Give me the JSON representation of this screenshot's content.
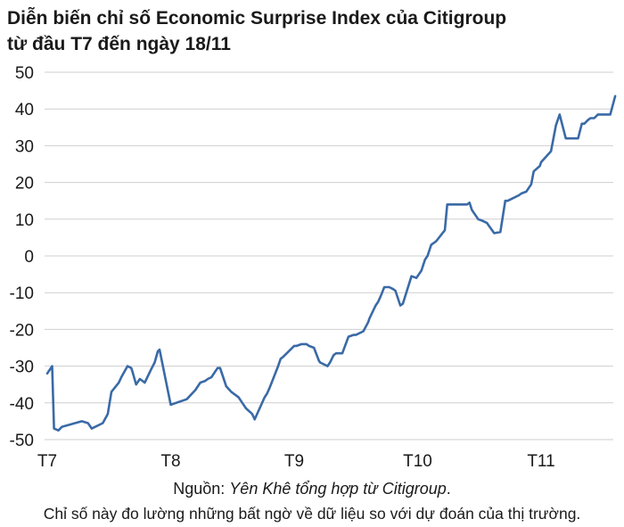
{
  "chart_data": {
    "type": "line",
    "title_line1": "Diễn biến chỉ số Economic Surprise Index của Citigroup",
    "title_line2": "từ đầu T7 đến ngày 18/11",
    "ylim": [
      -50,
      50
    ],
    "y_ticks": [
      "50",
      "40",
      "30",
      "20",
      "10",
      "0",
      "-10",
      "-20",
      "-30",
      "-40",
      "-50"
    ],
    "y_tick_values": [
      50,
      40,
      30,
      20,
      10,
      0,
      -10,
      -20,
      -30,
      -40,
      -50
    ],
    "x_ticks": [
      "T7",
      "T8",
      "T9",
      "T10",
      "T11"
    ],
    "x_tick_positions": [
      0,
      1,
      2,
      3,
      4
    ],
    "xlim": [
      0,
      4.6
    ],
    "line_color": "#3a6aa6",
    "series": [
      {
        "name": "Citigroup Economic Surprise Index",
        "x": [
          0.0,
          0.04,
          0.055,
          0.09,
          0.12,
          0.28,
          0.33,
          0.36,
          0.45,
          0.49,
          0.52,
          0.58,
          0.6,
          0.65,
          0.68,
          0.69,
          0.72,
          0.75,
          0.79,
          0.84,
          0.87,
          0.895,
          0.91,
          1.0,
          1.13,
          1.2,
          1.24,
          1.28,
          1.3,
          1.33,
          1.38,
          1.4,
          1.45,
          1.49,
          1.55,
          1.58,
          1.61,
          1.66,
          1.68,
          1.76,
          1.78,
          1.8,
          1.87,
          1.89,
          1.91,
          2.0,
          2.02,
          2.06,
          2.1,
          2.12,
          2.16,
          2.2,
          2.21,
          2.27,
          2.29,
          2.32,
          2.34,
          2.39,
          2.44,
          2.48,
          2.5,
          2.56,
          2.6,
          2.61,
          2.66,
          2.68,
          2.7,
          2.73,
          2.75,
          2.77,
          2.8,
          2.82,
          2.86,
          2.88,
          2.95,
          2.99,
          3.03,
          3.06,
          3.08,
          3.11,
          3.15,
          3.22,
          3.24,
          3.3,
          3.35,
          3.4,
          3.42,
          3.44,
          3.48,
          3.49,
          3.53,
          3.56,
          3.62,
          3.67,
          3.71,
          3.73,
          3.76,
          3.82,
          3.84,
          3.88,
          3.92,
          3.94,
          3.99,
          4.0,
          4.08,
          4.12,
          4.15,
          4.2,
          4.23,
          4.3,
          4.33,
          4.35,
          4.38,
          4.4,
          4.43,
          4.46,
          4.56,
          4.6
        ],
        "values": [
          -32,
          -30,
          -47,
          -47.5,
          -46.5,
          -45,
          -45.5,
          -47,
          -45.5,
          -43,
          -37,
          -34.5,
          -33,
          -30,
          -30.5,
          -31.5,
          -35,
          -33.5,
          -34.5,
          -31,
          -29,
          -26,
          -25.5,
          -40.5,
          -39,
          -36.5,
          -34.5,
          -34,
          -33.5,
          -33,
          -30.5,
          -30.5,
          -35.5,
          -37,
          -38.5,
          -40,
          -41.5,
          -43,
          -44.5,
          -38.5,
          -37.5,
          -36,
          -30,
          -28,
          -27.5,
          -24.5,
          -24.5,
          -24,
          -24,
          -24.5,
          -25,
          -28.5,
          -29,
          -30,
          -29,
          -27,
          -26.5,
          -26.5,
          -22,
          -21.5,
          -21.5,
          -20.5,
          -18,
          -17,
          -13.5,
          -12.5,
          -11,
          -8.5,
          -8.5,
          -8.5,
          -9,
          -9.5,
          -13.5,
          -13,
          -5.5,
          -6,
          -4,
          -1,
          0,
          3,
          4,
          7,
          14,
          14,
          14,
          14,
          14.5,
          12.5,
          10.5,
          10,
          9.5,
          9,
          6.2,
          6.5,
          15,
          15,
          15.5,
          16.5,
          17,
          17.5,
          19.5,
          23,
          24.5,
          25.5,
          28.5,
          35.5,
          38.5,
          32,
          32,
          32,
          36,
          36,
          37,
          37.5,
          37.5,
          38.5,
          38.5,
          43.5
        ]
      }
    ]
  },
  "source": {
    "label": "Nguồn:",
    "body": "Yên Khê tổng hợp từ Citigroup",
    "end": "."
  },
  "note": "Chỉ số này đo lường những bất ngờ về dữ liệu so với dự đoán của thị trường."
}
